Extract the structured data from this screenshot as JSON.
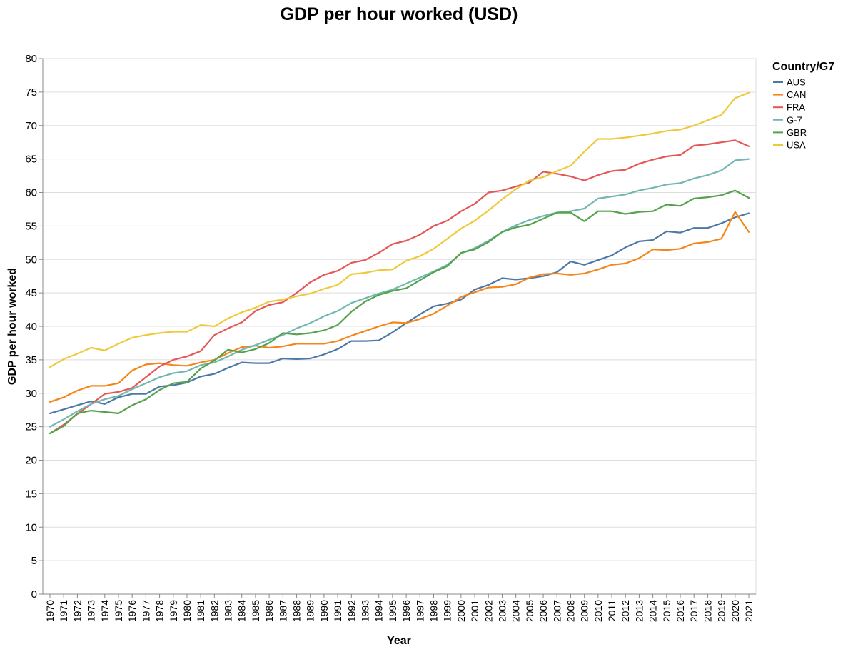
{
  "chart_data": {
    "type": "line",
    "title": "GDP per hour worked (USD)",
    "xlabel": "Year",
    "ylabel": "GDP per hour worked",
    "ylim": [
      0,
      80
    ],
    "yticks": [
      0,
      5,
      10,
      15,
      20,
      25,
      30,
      35,
      40,
      45,
      50,
      55,
      60,
      65,
      70,
      75,
      80
    ],
    "grid": true,
    "legend_title": "Country/G7",
    "legend_position": "top-right",
    "x": [
      1970,
      1971,
      1972,
      1973,
      1974,
      1975,
      1976,
      1977,
      1978,
      1979,
      1980,
      1981,
      1982,
      1983,
      1984,
      1985,
      1986,
      1987,
      1988,
      1989,
      1990,
      1991,
      1992,
      1993,
      1994,
      1995,
      1996,
      1997,
      1998,
      1999,
      2000,
      2001,
      2002,
      2003,
      2004,
      2005,
      2006,
      2007,
      2008,
      2009,
      2010,
      2011,
      2012,
      2013,
      2014,
      2015,
      2016,
      2017,
      2018,
      2019,
      2020,
      2021
    ],
    "series": [
      {
        "name": "AUS",
        "color": "#4c78a8",
        "values": [
          27.0,
          27.6,
          28.2,
          28.8,
          28.4,
          29.4,
          29.9,
          29.9,
          31.0,
          31.2,
          31.6,
          32.5,
          32.9,
          33.8,
          34.6,
          34.5,
          34.5,
          35.2,
          35.1,
          35.2,
          35.8,
          36.6,
          37.8,
          37.8,
          37.9,
          39.1,
          40.5,
          41.8,
          43.0,
          43.4,
          44.0,
          45.5,
          46.2,
          47.2,
          47.0,
          47.2,
          47.5,
          48.1,
          49.7,
          49.2,
          49.9,
          50.6,
          51.8,
          52.7,
          52.9,
          54.2,
          54.0,
          54.7,
          54.7,
          55.4,
          56.3,
          56.9
        ]
      },
      {
        "name": "CAN",
        "color": "#f58518",
        "values": [
          28.7,
          29.4,
          30.4,
          31.1,
          31.1,
          31.5,
          33.4,
          34.3,
          34.5,
          34.2,
          34.1,
          34.6,
          35.0,
          36.0,
          36.9,
          37.1,
          36.8,
          37.0,
          37.4,
          37.4,
          37.4,
          37.8,
          38.6,
          39.3,
          40.0,
          40.6,
          40.5,
          41.1,
          41.9,
          43.1,
          44.4,
          45.1,
          45.8,
          45.9,
          46.3,
          47.3,
          47.8,
          47.9,
          47.7,
          47.9,
          48.5,
          49.2,
          49.4,
          50.2,
          51.5,
          51.4,
          51.6,
          52.4,
          52.6,
          53.1,
          57.1,
          54.1
        ]
      },
      {
        "name": "FRA",
        "color": "#e45756",
        "values": [
          24.0,
          25.3,
          26.9,
          28.4,
          29.9,
          30.2,
          30.8,
          32.4,
          34.0,
          35.0,
          35.5,
          36.3,
          38.7,
          39.7,
          40.6,
          42.3,
          43.2,
          43.6,
          45.0,
          46.6,
          47.7,
          48.3,
          49.5,
          49.9,
          51.0,
          52.3,
          52.8,
          53.7,
          55.0,
          55.8,
          57.2,
          58.3,
          60.0,
          60.3,
          60.9,
          61.5,
          63.1,
          62.8,
          62.4,
          61.8,
          62.6,
          63.2,
          63.4,
          64.3,
          64.9,
          65.4,
          65.6,
          67.0,
          67.2,
          67.5,
          67.8,
          66.9
        ]
      },
      {
        "name": "G-7",
        "color": "#72b7b2",
        "values": [
          25.0,
          26.1,
          27.3,
          28.4,
          29.1,
          29.6,
          30.6,
          31.5,
          32.4,
          33.0,
          33.3,
          34.2,
          34.6,
          35.5,
          36.5,
          37.2,
          38.0,
          38.7,
          39.7,
          40.5,
          41.5,
          42.3,
          43.5,
          44.2,
          44.9,
          45.5,
          46.4,
          47.3,
          48.2,
          49.2,
          50.9,
          51.7,
          52.8,
          54.1,
          55.1,
          55.9,
          56.5,
          57.0,
          57.2,
          57.6,
          59.1,
          59.4,
          59.7,
          60.3,
          60.7,
          61.2,
          61.4,
          62.1,
          62.6,
          63.3,
          64.8,
          65.0
        ]
      },
      {
        "name": "GBR",
        "color": "#54a24b",
        "values": [
          24.0,
          25.1,
          27.0,
          27.4,
          27.2,
          27.0,
          28.2,
          29.1,
          30.5,
          31.5,
          31.7,
          33.7,
          34.9,
          36.5,
          36.1,
          36.6,
          37.5,
          39.0,
          38.8,
          39.0,
          39.4,
          40.2,
          42.2,
          43.7,
          44.7,
          45.3,
          45.7,
          46.9,
          48.1,
          49.0,
          51.0,
          51.5,
          52.6,
          54.1,
          54.8,
          55.2,
          56.1,
          57.0,
          57.0,
          55.7,
          57.2,
          57.2,
          56.8,
          57.1,
          57.2,
          58.2,
          58.0,
          59.1,
          59.3,
          59.6,
          60.3,
          59.2
        ]
      },
      {
        "name": "USA",
        "color": "#eeca3b",
        "values": [
          33.9,
          35.1,
          35.9,
          36.8,
          36.4,
          37.4,
          38.3,
          38.7,
          39.0,
          39.2,
          39.2,
          40.2,
          40.0,
          41.2,
          42.1,
          42.8,
          43.7,
          44.0,
          44.5,
          44.9,
          45.6,
          46.2,
          47.8,
          48.0,
          48.4,
          48.5,
          49.8,
          50.5,
          51.6,
          53.1,
          54.6,
          55.8,
          57.3,
          59.0,
          60.5,
          61.8,
          62.3,
          63.2,
          64.0,
          66.1,
          68.0,
          68.0,
          68.2,
          68.5,
          68.8,
          69.2,
          69.4,
          70.0,
          70.8,
          71.6,
          74.1,
          74.9
        ]
      }
    ]
  }
}
